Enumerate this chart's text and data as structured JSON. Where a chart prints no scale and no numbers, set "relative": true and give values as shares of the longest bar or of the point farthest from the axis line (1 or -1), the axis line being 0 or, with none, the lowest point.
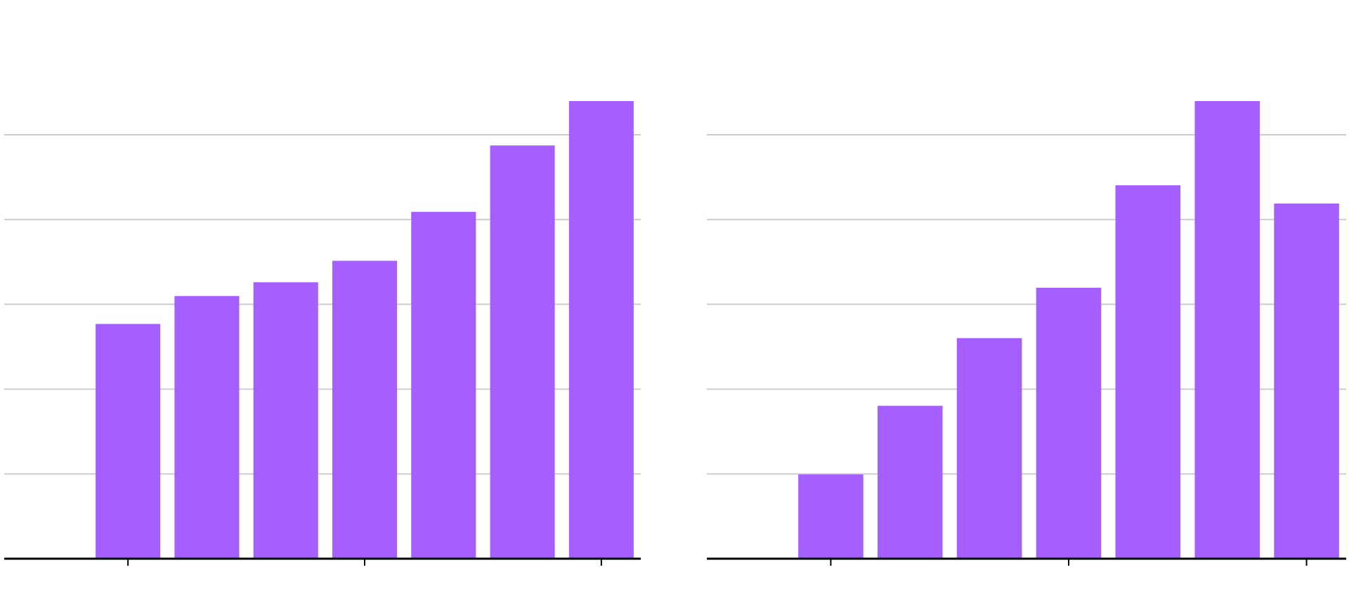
{
  "chart_data": [
    {
      "type": "bar",
      "relative": true,
      "grid": "y",
      "color": "#a45ffe",
      "categories": [
        null,
        null,
        null,
        null,
        null,
        null,
        null
      ],
      "values": [
        0.513,
        0.574,
        0.604,
        0.651,
        0.758,
        0.903,
        1
      ]
    },
    {
      "type": "bar",
      "relative": true,
      "grid": "y",
      "color": "#a45ffe",
      "categories": [
        null,
        null,
        null,
        null,
        null,
        null,
        null
      ],
      "values": [
        0.184,
        0.334,
        0.482,
        0.592,
        0.816,
        1,
        0.776
      ]
    }
  ]
}
